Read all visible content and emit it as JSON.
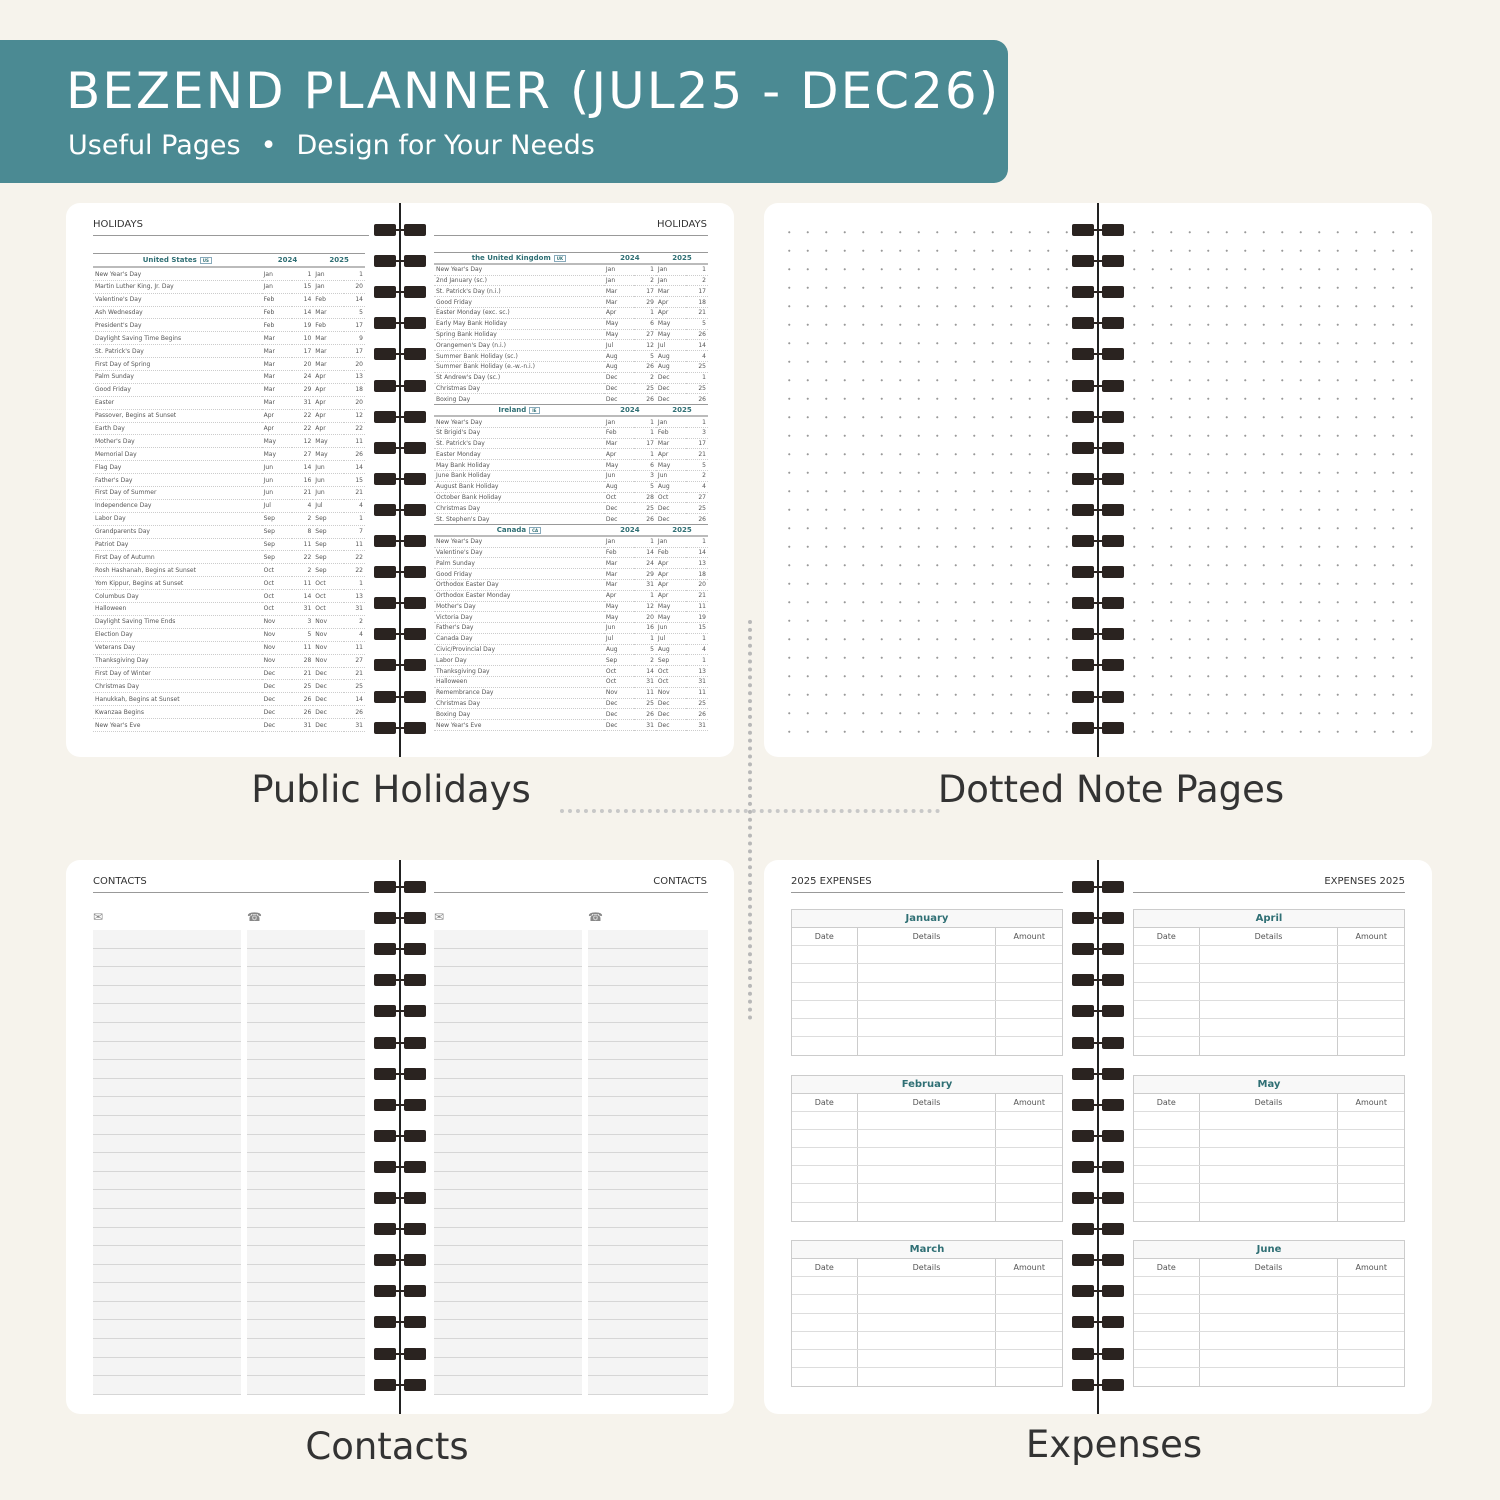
{
  "banner": {
    "title": "BEZEND PLANNER (JUL25 - DEC26)",
    "subtitle_left": "Useful Pages",
    "separator": "•",
    "subtitle_right": "Design for Your Needs",
    "color": "#4b8a93"
  },
  "labels": {
    "holidays": "Public Holidays",
    "dotted": "Dotted Note Pages",
    "contacts": "Contacts",
    "expenses": "Expenses"
  },
  "holidays": {
    "title": "HOLIDAYS",
    "years": [
      "2024",
      "2025"
    ],
    "left": [
      {
        "country": "United States",
        "badge": "US",
        "rows": [
          [
            "New Year's Day",
            "Jan",
            "1",
            "Jan",
            "1"
          ],
          [
            "Martin Luther King, Jr. Day",
            "Jan",
            "15",
            "Jan",
            "20"
          ],
          [
            "Valentine's Day",
            "Feb",
            "14",
            "Feb",
            "14"
          ],
          [
            "Ash Wednesday",
            "Feb",
            "14",
            "Mar",
            "5"
          ],
          [
            "President's Day",
            "Feb",
            "19",
            "Feb",
            "17"
          ],
          [
            "Daylight Saving Time Begins",
            "Mar",
            "10",
            "Mar",
            "9"
          ],
          [
            "St. Patrick's Day",
            "Mar",
            "17",
            "Mar",
            "17"
          ],
          [
            "First Day of Spring",
            "Mar",
            "20",
            "Mar",
            "20"
          ],
          [
            "Palm Sunday",
            "Mar",
            "24",
            "Apr",
            "13"
          ],
          [
            "Good Friday",
            "Mar",
            "29",
            "Apr",
            "18"
          ],
          [
            "Easter",
            "Mar",
            "31",
            "Apr",
            "20"
          ],
          [
            "Passover, Begins at Sunset",
            "Apr",
            "22",
            "Apr",
            "12"
          ],
          [
            "Earth Day",
            "Apr",
            "22",
            "Apr",
            "22"
          ],
          [
            "Mother's Day",
            "May",
            "12",
            "May",
            "11"
          ],
          [
            "Memorial Day",
            "May",
            "27",
            "May",
            "26"
          ],
          [
            "Flag Day",
            "Jun",
            "14",
            "Jun",
            "14"
          ],
          [
            "Father's Day",
            "Jun",
            "16",
            "Jun",
            "15"
          ],
          [
            "First Day of Summer",
            "Jun",
            "21",
            "Jun",
            "21"
          ],
          [
            "Independence Day",
            "Jul",
            "4",
            "Jul",
            "4"
          ],
          [
            "Labor Day",
            "Sep",
            "2",
            "Sep",
            "1"
          ],
          [
            "Grandparents Day",
            "Sep",
            "8",
            "Sep",
            "7"
          ],
          [
            "Patriot Day",
            "Sep",
            "11",
            "Sep",
            "11"
          ],
          [
            "First Day of Autumn",
            "Sep",
            "22",
            "Sep",
            "22"
          ],
          [
            "Rosh Hashanah, Begins at Sunset",
            "Oct",
            "2",
            "Sep",
            "22"
          ],
          [
            "Yom Kippur, Begins at Sunset",
            "Oct",
            "11",
            "Oct",
            "1"
          ],
          [
            "Columbus Day",
            "Oct",
            "14",
            "Oct",
            "13"
          ],
          [
            "Halloween",
            "Oct",
            "31",
            "Oct",
            "31"
          ],
          [
            "Daylight Saving Time Ends",
            "Nov",
            "3",
            "Nov",
            "2"
          ],
          [
            "Election Day",
            "Nov",
            "5",
            "Nov",
            "4"
          ],
          [
            "Veterans Day",
            "Nov",
            "11",
            "Nov",
            "11"
          ],
          [
            "Thanksgiving Day",
            "Nov",
            "28",
            "Nov",
            "27"
          ],
          [
            "First Day of Winter",
            "Dec",
            "21",
            "Dec",
            "21"
          ],
          [
            "Christmas Day",
            "Dec",
            "25",
            "Dec",
            "25"
          ],
          [
            "Hanukkah, Begins at Sunset",
            "Dec",
            "26",
            "Dec",
            "14"
          ],
          [
            "Kwanzaa Begins",
            "Dec",
            "26",
            "Dec",
            "26"
          ],
          [
            "New Year's Eve",
            "Dec",
            "31",
            "Dec",
            "31"
          ]
        ]
      }
    ],
    "right": [
      {
        "country": "the United Kingdom",
        "badge": "UK",
        "rows": [
          [
            "New Year's Day",
            "Jan",
            "1",
            "Jan",
            "1"
          ],
          [
            "2nd January (sc.)",
            "Jan",
            "2",
            "Jan",
            "2"
          ],
          [
            "St. Patrick's Day (n.i.)",
            "Mar",
            "17",
            "Mar",
            "17"
          ],
          [
            "Good Friday",
            "Mar",
            "29",
            "Apr",
            "18"
          ],
          [
            "Easter Monday (exc. sc.)",
            "Apr",
            "1",
            "Apr",
            "21"
          ],
          [
            "Early May Bank Holiday",
            "May",
            "6",
            "May",
            "5"
          ],
          [
            "Spring Bank Holiday",
            "May",
            "27",
            "May",
            "26"
          ],
          [
            "Orangemen's Day (n.i.)",
            "Jul",
            "12",
            "Jul",
            "14"
          ],
          [
            "Summer Bank Holiday (sc.)",
            "Aug",
            "5",
            "Aug",
            "4"
          ],
          [
            "Summer Bank Holiday (e.-w.-n.i.)",
            "Aug",
            "26",
            "Aug",
            "25"
          ],
          [
            "St Andrew's Day (sc.)",
            "Dec",
            "2",
            "Dec",
            "1"
          ],
          [
            "Christmas Day",
            "Dec",
            "25",
            "Dec",
            "25"
          ],
          [
            "Boxing Day",
            "Dec",
            "26",
            "Dec",
            "26"
          ]
        ]
      },
      {
        "country": "Ireland",
        "badge": "IE",
        "rows": [
          [
            "New Year's Day",
            "Jan",
            "1",
            "Jan",
            "1"
          ],
          [
            "St Brigid's Day",
            "Feb",
            "1",
            "Feb",
            "3"
          ],
          [
            "St. Patrick's Day",
            "Mar",
            "17",
            "Mar",
            "17"
          ],
          [
            "Easter Monday",
            "Apr",
            "1",
            "Apr",
            "21"
          ],
          [
            "May Bank Holiday",
            "May",
            "6",
            "May",
            "5"
          ],
          [
            "June Bank Holiday",
            "Jun",
            "3",
            "Jun",
            "2"
          ],
          [
            "August Bank Holiday",
            "Aug",
            "5",
            "Aug",
            "4"
          ],
          [
            "October Bank Holiday",
            "Oct",
            "28",
            "Oct",
            "27"
          ],
          [
            "Christmas Day",
            "Dec",
            "25",
            "Dec",
            "25"
          ],
          [
            "St. Stephen's Day",
            "Dec",
            "26",
            "Dec",
            "26"
          ]
        ]
      },
      {
        "country": "Canada",
        "badge": "CA",
        "rows": [
          [
            "New Year's Day",
            "Jan",
            "1",
            "Jan",
            "1"
          ],
          [
            "Valentine's Day",
            "Feb",
            "14",
            "Feb",
            "14"
          ],
          [
            "Palm Sunday",
            "Mar",
            "24",
            "Apr",
            "13"
          ],
          [
            "Good Friday",
            "Mar",
            "29",
            "Apr",
            "18"
          ],
          [
            "Orthodox Easter Day",
            "Mar",
            "31",
            "Apr",
            "20"
          ],
          [
            "Orthodox Easter Monday",
            "Apr",
            "1",
            "Apr",
            "21"
          ],
          [
            "Mother's Day",
            "May",
            "12",
            "May",
            "11"
          ],
          [
            "Victoria Day",
            "May",
            "20",
            "May",
            "19"
          ],
          [
            "Father's Day",
            "Jun",
            "16",
            "Jun",
            "15"
          ],
          [
            "Canada Day",
            "Jul",
            "1",
            "Jul",
            "1"
          ],
          [
            "Civic/Provincial Day",
            "Aug",
            "5",
            "Aug",
            "4"
          ],
          [
            "Labor Day",
            "Sep",
            "2",
            "Sep",
            "1"
          ],
          [
            "Thanksgiving Day",
            "Oct",
            "14",
            "Oct",
            "13"
          ],
          [
            "Halloween",
            "Oct",
            "31",
            "Oct",
            "31"
          ],
          [
            "Remembrance Day",
            "Nov",
            "11",
            "Nov",
            "11"
          ],
          [
            "Christmas Day",
            "Dec",
            "25",
            "Dec",
            "25"
          ],
          [
            "Boxing Day",
            "Dec",
            "26",
            "Dec",
            "26"
          ],
          [
            "New Year's Eve",
            "Dec",
            "31",
            "Dec",
            "31"
          ]
        ]
      }
    ]
  },
  "contacts": {
    "title": "CONTACTS",
    "icons": [
      "envelope-icon",
      "phone-icon"
    ]
  },
  "expenses": {
    "title_left": "2025 EXPENSES",
    "title_right": "EXPENSES 2025",
    "columns": [
      "Date",
      "Details",
      "Amount"
    ],
    "left_months": [
      "January",
      "February",
      "March"
    ],
    "right_months": [
      "April",
      "May",
      "June"
    ]
  }
}
